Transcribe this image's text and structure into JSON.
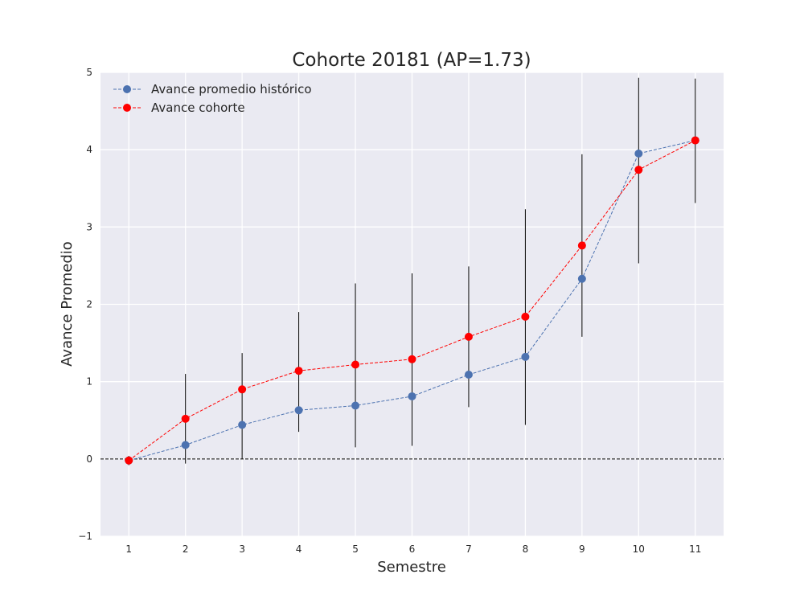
{
  "chart_data": {
    "type": "line",
    "title": "Cohorte 20181 (AP=1.73)",
    "xlabel": "Semestre",
    "ylabel": "Avance Promedio",
    "x": [
      1,
      2,
      3,
      4,
      5,
      6,
      7,
      8,
      9,
      10,
      11
    ],
    "xlim": [
      0.5,
      11.5
    ],
    "ylim": [
      -1,
      5
    ],
    "yticks": [
      -1,
      0,
      1,
      2,
      3,
      4,
      5
    ],
    "ytick_labels": [
      "−1",
      "0",
      "1",
      "2",
      "3",
      "4",
      "5"
    ],
    "xtick_labels": [
      "1",
      "2",
      "3",
      "4",
      "5",
      "6",
      "7",
      "8",
      "9",
      "10",
      "11"
    ],
    "grid": true,
    "reference_line": {
      "y": 0,
      "style": "dashed",
      "color": "#000000"
    },
    "legend_position": "top-left",
    "series": [
      {
        "name": "Avance promedio histórico",
        "color": "#4c72b0",
        "line_style": "dashed",
        "marker": "circle",
        "values": [
          -0.02,
          0.18,
          0.44,
          0.63,
          0.69,
          0.81,
          1.09,
          1.32,
          2.33,
          3.95,
          4.12
        ],
        "error_low": [
          -0.08,
          -0.06,
          0.0,
          0.35,
          0.15,
          0.17,
          0.67,
          0.44,
          1.58,
          2.53,
          3.31
        ],
        "error_high": [
          0.04,
          1.1,
          1.37,
          1.9,
          2.27,
          2.4,
          2.49,
          3.23,
          3.94,
          4.93,
          4.92
        ]
      },
      {
        "name": "Avance cohorte",
        "color": "#ff0000",
        "line_style": "dashed",
        "marker": "circle",
        "values": [
          -0.02,
          0.52,
          0.9,
          1.14,
          1.22,
          1.29,
          1.58,
          1.84,
          2.76,
          3.74,
          4.12
        ]
      }
    ]
  }
}
